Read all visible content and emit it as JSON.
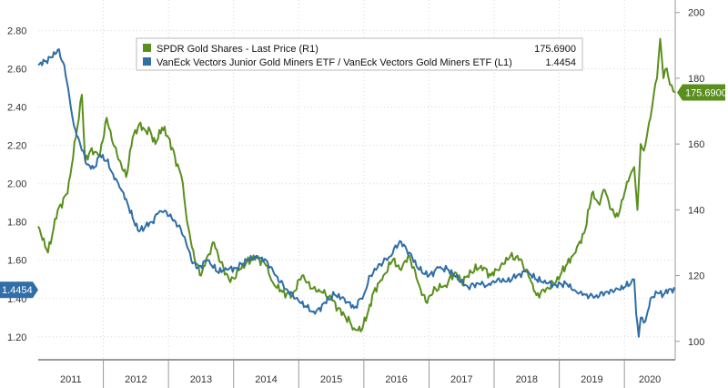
{
  "chart_data": {
    "type": "line",
    "title": "",
    "xlabel": "",
    "grid": true,
    "legend_position": "top",
    "x_axis": {
      "labels": [
        "2011",
        "2012",
        "2013",
        "2014",
        "2015",
        "2016",
        "2017",
        "2018",
        "2019",
        "2020"
      ],
      "range": [
        2011.0,
        2020.78
      ]
    },
    "left_axis": {
      "range": [
        1.08,
        2.96
      ],
      "ticks": [
        1.2,
        1.4,
        1.6,
        1.8,
        2.0,
        2.2,
        2.4,
        2.6,
        2.8
      ],
      "tick_labels": [
        "1.20",
        "1.40",
        "1.60",
        "1.80",
        "2.00",
        "2.20",
        "2.40",
        "2.60",
        "2.80"
      ]
    },
    "right_axis": {
      "range": [
        94.4,
        203.8
      ],
      "ticks": [
        100,
        120,
        140,
        160,
        180,
        200
      ],
      "tick_labels": [
        "100",
        "120",
        "140",
        "160",
        "180",
        "200"
      ]
    },
    "series": [
      {
        "name": "SPDR Gold Shares - Last Price (R1)",
        "axis": "right",
        "color": "#5a8f1e",
        "last_value": "175.6900",
        "x": [
          2011.0,
          2011.15,
          2011.3,
          2011.45,
          2011.6,
          2011.67,
          2011.72,
          2011.8,
          2011.95,
          2012.05,
          2012.15,
          2012.25,
          2012.35,
          2012.45,
          2012.55,
          2012.65,
          2012.72,
          2012.8,
          2012.9,
          2013.0,
          2013.1,
          2013.2,
          2013.3,
          2013.4,
          2013.5,
          2013.6,
          2013.7,
          2013.8,
          2013.95,
          2014.1,
          2014.2,
          2014.35,
          2014.5,
          2014.6,
          2014.75,
          2014.9,
          2015.05,
          2015.2,
          2015.35,
          2015.5,
          2015.6,
          2015.7,
          2015.85,
          2015.95,
          2016.05,
          2016.15,
          2016.3,
          2016.45,
          2016.55,
          2016.7,
          2016.85,
          2016.95,
          2017.1,
          2017.25,
          2017.4,
          2017.5,
          2017.65,
          2017.8,
          2017.95,
          2018.1,
          2018.25,
          2018.4,
          2018.55,
          2018.65,
          2018.8,
          2018.95,
          2019.1,
          2019.25,
          2019.4,
          2019.5,
          2019.6,
          2019.7,
          2019.8,
          2019.9,
          2020.0,
          2020.08,
          2020.15,
          2020.2,
          2020.25,
          2020.3,
          2020.4,
          2020.45,
          2020.5,
          2020.55,
          2020.6,
          2020.65,
          2020.7,
          2020.75,
          2020.78
        ],
        "values": [
          135,
          127,
          140,
          145,
          165,
          175,
          155,
          158,
          157,
          168,
          160,
          155,
          150,
          162,
          166,
          164,
          164,
          160,
          165,
          162,
          156,
          150,
          135,
          125,
          120,
          126,
          130,
          124,
          118,
          122,
          124,
          126,
          123,
          118,
          115,
          114,
          120,
          116,
          115,
          113,
          110,
          108,
          104,
          103,
          108,
          115,
          120,
          125,
          122,
          126,
          117,
          112,
          116,
          117,
          121,
          118,
          121,
          123,
          120,
          123,
          126,
          125,
          119,
          114,
          116,
          118,
          123,
          127,
          134,
          145,
          142,
          146,
          140,
          138,
          145,
          150,
          153,
          140,
          160,
          158,
          168,
          175,
          180,
          192,
          180,
          183,
          178,
          176,
          175.69
        ]
      },
      {
        "name": "VanEck Vectors Junior Gold Miners ETF / VanEck Vectors Gold Miners ETF (L1)",
        "axis": "left",
        "color": "#2f6ea6",
        "last_value": "1.4454",
        "x": [
          2011.0,
          2011.1,
          2011.2,
          2011.3,
          2011.4,
          2011.5,
          2011.55,
          2011.65,
          2011.75,
          2011.85,
          2011.95,
          2012.05,
          2012.15,
          2012.25,
          2012.35,
          2012.45,
          2012.55,
          2012.65,
          2012.75,
          2012.85,
          2012.95,
          2013.05,
          2013.15,
          2013.25,
          2013.35,
          2013.45,
          2013.6,
          2013.75,
          2013.9,
          2014.05,
          2014.2,
          2014.35,
          2014.5,
          2014.65,
          2014.8,
          2014.95,
          2015.1,
          2015.25,
          2015.4,
          2015.55,
          2015.7,
          2015.85,
          2016.0,
          2016.1,
          2016.25,
          2016.4,
          2016.55,
          2016.7,
          2016.85,
          2017.0,
          2017.15,
          2017.3,
          2017.45,
          2017.6,
          2017.75,
          2017.9,
          2018.05,
          2018.2,
          2018.35,
          2018.5,
          2018.65,
          2018.8,
          2018.95,
          2019.1,
          2019.25,
          2019.4,
          2019.55,
          2019.7,
          2019.85,
          2020.0,
          2020.1,
          2020.15,
          2020.18,
          2020.22,
          2020.25,
          2020.32,
          2020.4,
          2020.5,
          2020.6,
          2020.7,
          2020.78
        ],
        "values": [
          2.62,
          2.64,
          2.66,
          2.7,
          2.62,
          2.4,
          2.3,
          2.2,
          2.1,
          2.08,
          2.15,
          2.12,
          2.05,
          1.98,
          1.92,
          1.82,
          1.75,
          1.78,
          1.8,
          1.85,
          1.86,
          1.82,
          1.78,
          1.72,
          1.6,
          1.56,
          1.6,
          1.54,
          1.55,
          1.56,
          1.6,
          1.62,
          1.6,
          1.52,
          1.45,
          1.4,
          1.36,
          1.32,
          1.38,
          1.42,
          1.4,
          1.35,
          1.42,
          1.52,
          1.58,
          1.62,
          1.7,
          1.64,
          1.55,
          1.52,
          1.56,
          1.55,
          1.5,
          1.46,
          1.48,
          1.47,
          1.5,
          1.49,
          1.52,
          1.54,
          1.5,
          1.48,
          1.47,
          1.48,
          1.44,
          1.42,
          1.41,
          1.43,
          1.44,
          1.46,
          1.48,
          1.5,
          1.32,
          1.2,
          1.3,
          1.28,
          1.4,
          1.43,
          1.42,
          1.45,
          1.4454
        ]
      }
    ]
  }
}
